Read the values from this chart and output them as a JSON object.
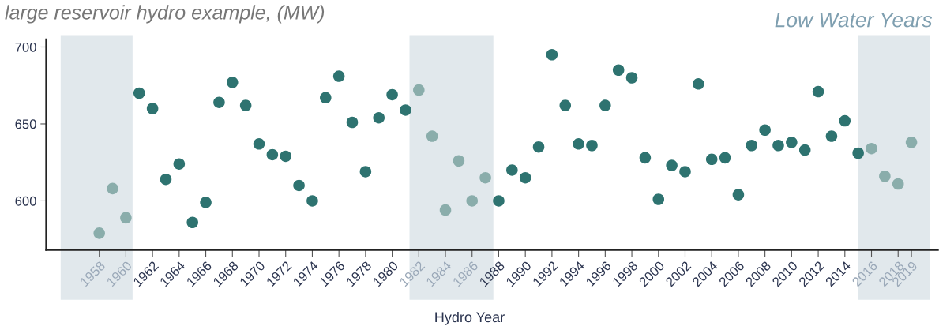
{
  "chart_data": {
    "type": "scatter",
    "title": "large reservoir hydro example, (MW)",
    "xlabel": "Hydro Year",
    "annotations": [
      "Low Water Years"
    ],
    "x": [
      1958,
      1959,
      1960,
      1961,
      1962,
      1963,
      1964,
      1965,
      1966,
      1967,
      1968,
      1969,
      1970,
      1971,
      1972,
      1973,
      1974,
      1975,
      1976,
      1977,
      1978,
      1979,
      1980,
      1981,
      1982,
      1983,
      1984,
      1985,
      1986,
      1987,
      1988,
      1989,
      1990,
      1991,
      1992,
      1993,
      1994,
      1995,
      1996,
      1997,
      1998,
      1999,
      2000,
      2001,
      2002,
      2003,
      2004,
      2005,
      2006,
      2007,
      2008,
      2009,
      2010,
      2011,
      2012,
      2013,
      2014,
      2015,
      2016,
      2017,
      2018,
      2019
    ],
    "series": [
      {
        "values": [
          579,
          608,
          589,
          670,
          660,
          614,
          624,
          586,
          599,
          664,
          677,
          662,
          637,
          630,
          629,
          610,
          600,
          667,
          681,
          651,
          619,
          654,
          669,
          659,
          672,
          642,
          594,
          626,
          600,
          615,
          600,
          620,
          615,
          635,
          695,
          662,
          637,
          636,
          662,
          685,
          680,
          628,
          601,
          623,
          619,
          676,
          627,
          628,
          604,
          636,
          646,
          636,
          638,
          633,
          671,
          642,
          652,
          631,
          634,
          616,
          611,
          638
        ],
        "colors": [
          "#8aadab",
          "#8aadab",
          "#8aadab",
          "#2e7370",
          "#2e7370",
          "#2e7370",
          "#2e7370",
          "#2e7370",
          "#2e7370",
          "#2e7370",
          "#2e7370",
          "#2e7370",
          "#2e7370",
          "#2e7370",
          "#2e7370",
          "#2e7370",
          "#2e7370",
          "#2e7370",
          "#2e7370",
          "#2e7370",
          "#2e7370",
          "#2e7370",
          "#2e7370",
          "#2e7370",
          "#8aadab",
          "#8aadab",
          "#8aadab",
          "#8aadab",
          "#8aadab",
          "#8aadab",
          "#2e7370",
          "#2e7370",
          "#2e7370",
          "#2e7370",
          "#2e7370",
          "#2e7370",
          "#2e7370",
          "#2e7370",
          "#2e7370",
          "#2e7370",
          "#2e7370",
          "#2e7370",
          "#2e7370",
          "#2e7370",
          "#2e7370",
          "#2e7370",
          "#2e7370",
          "#2e7370",
          "#2e7370",
          "#2e7370",
          "#2e7370",
          "#2e7370",
          "#2e7370",
          "#2e7370",
          "#2e7370",
          "#2e7370",
          "#2e7370",
          "#2e7370",
          "#8aadab",
          "#8aadab",
          "#8aadab",
          "#8aadab"
        ]
      }
    ],
    "bands": [
      {
        "axis": "x",
        "from": 1955.1,
        "to": 1960.5,
        "color": "#e1e8ec"
      },
      {
        "axis": "x",
        "from": 1981.3,
        "to": 1987.6,
        "color": "#e1e8ec"
      },
      {
        "axis": "x",
        "from": 2015.0,
        "to": 2020.4,
        "color": "#e1e8ec"
      }
    ],
    "xlim": [
      1954,
      2021
    ],
    "xticks": [
      1958,
      1960,
      1962,
      1964,
      1966,
      1968,
      1970,
      1972,
      1974,
      1976,
      1978,
      1980,
      1982,
      1984,
      1986,
      1988,
      1990,
      1992,
      1994,
      1996,
      1998,
      2000,
      2002,
      2004,
      2006,
      2008,
      2010,
      2012,
      2014,
      2016,
      2018,
      2019
    ],
    "ylim": [
      568,
      705
    ],
    "yticks": [
      600,
      650,
      700
    ],
    "grid": false,
    "legend": false,
    "marker": "circle"
  }
}
